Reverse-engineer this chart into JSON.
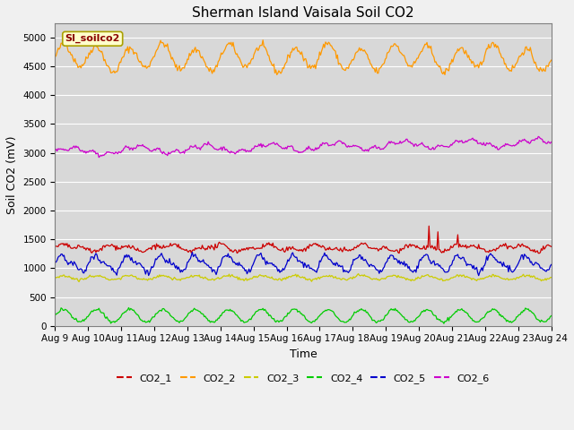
{
  "title": "Sherman Island Vaisala Soil CO2",
  "ylabel": "Soil CO2 (mV)",
  "xlabel": "Time",
  "annotation_text": "SI_soilco2",
  "x_tick_labels": [
    "Aug 9",
    "Aug 10",
    "Aug 11",
    "Aug 12",
    "Aug 13",
    "Aug 14",
    "Aug 15",
    "Aug 16",
    "Aug 17",
    "Aug 18",
    "Aug 19",
    "Aug 20",
    "Aug 21",
    "Aug 22",
    "Aug 23",
    "Aug 24"
  ],
  "ylim": [
    0,
    5250
  ],
  "yticks": [
    0,
    500,
    1000,
    1500,
    2000,
    2500,
    3000,
    3500,
    4000,
    4500,
    5000
  ],
  "series_colors": {
    "CO2_1": "#cc0000",
    "CO2_2": "#ff9900",
    "CO2_3": "#cccc00",
    "CO2_4": "#00cc00",
    "CO2_5": "#0000cc",
    "CO2_6": "#cc00cc"
  },
  "legend_labels": [
    "CO2_1",
    "CO2_2",
    "CO2_3",
    "CO2_4",
    "CO2_5",
    "CO2_6"
  ],
  "legend_colors": [
    "#cc0000",
    "#ff9900",
    "#cccc00",
    "#00cc00",
    "#0000cc",
    "#cc00cc"
  ],
  "n_points": 500,
  "fig_facecolor": "#f0f0f0",
  "ax_facecolor": "#d8d8d8",
  "title_fontsize": 11,
  "axis_label_fontsize": 9,
  "tick_fontsize": 7.5,
  "legend_fontsize": 8
}
